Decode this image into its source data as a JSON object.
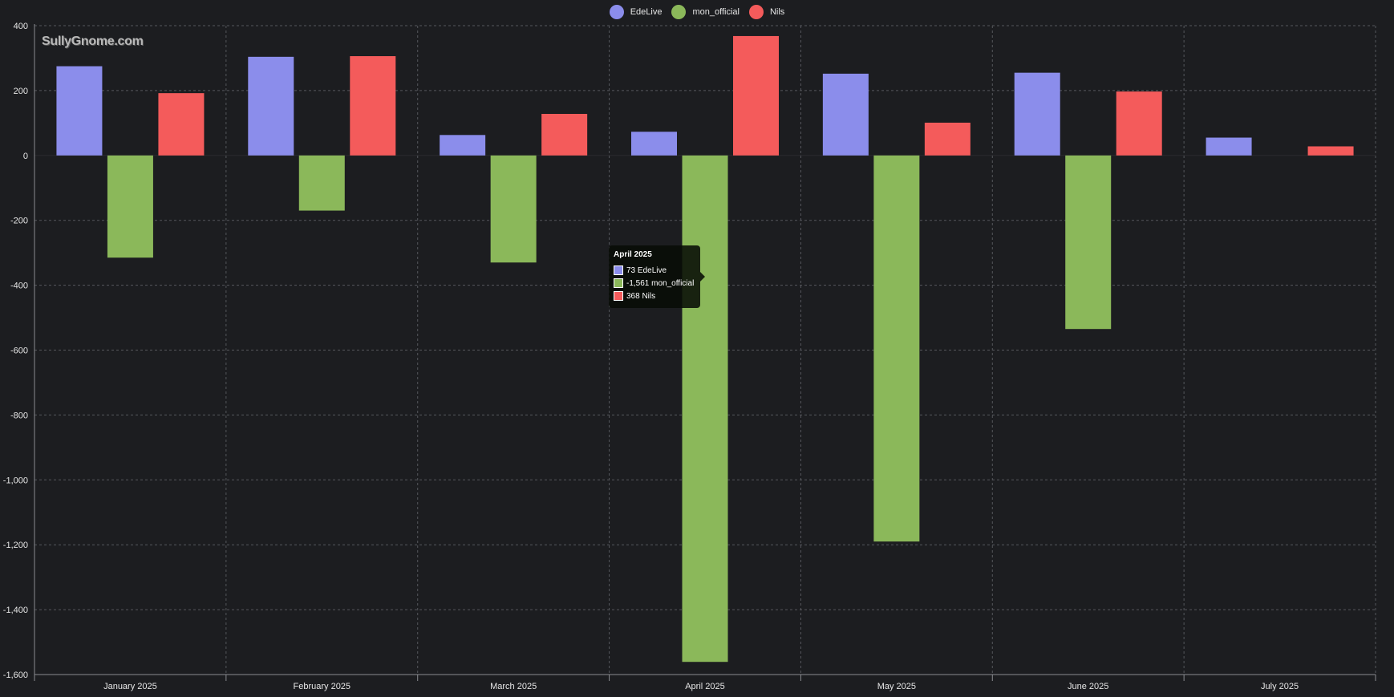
{
  "watermark": "SullyGnome.com",
  "chart_data": {
    "type": "bar",
    "categories": [
      "January 2025",
      "February 2025",
      "March 2025",
      "April 2025",
      "May 2025",
      "June 2025",
      "July 2025"
    ],
    "series": [
      {
        "name": "EdeLive",
        "color": "#8b8deb",
        "values": [
          275,
          304,
          63,
          73,
          252,
          255,
          55
        ]
      },
      {
        "name": "mon_official",
        "color": "#8bb85a",
        "values": [
          -315,
          -170,
          -330,
          -1561,
          -1190,
          -535,
          0
        ]
      },
      {
        "name": "Nils",
        "color": "#f45b5b",
        "values": [
          192,
          306,
          128,
          368,
          101,
          197,
          28
        ]
      }
    ],
    "ylim": [
      -1600,
      400
    ],
    "yticks": [
      400,
      200,
      0,
      -200,
      -400,
      -600,
      -800,
      -1000,
      -1200,
      -1400,
      -1600
    ],
    "ytick_labels": [
      "400",
      "200",
      "0",
      "-200",
      "-400",
      "-600",
      "-800",
      "-1,000",
      "-1,200",
      "-1,400",
      "-1,600"
    ],
    "grid": true,
    "legend_position": "top-center"
  },
  "tooltip": {
    "title": "April 2025",
    "rows": [
      {
        "text": "73 EdeLive",
        "color": "#8b8deb"
      },
      {
        "text": "-1,561 mon_official",
        "color": "#8bb85a"
      },
      {
        "text": "368 Nils",
        "color": "#f45b5b"
      }
    ]
  }
}
